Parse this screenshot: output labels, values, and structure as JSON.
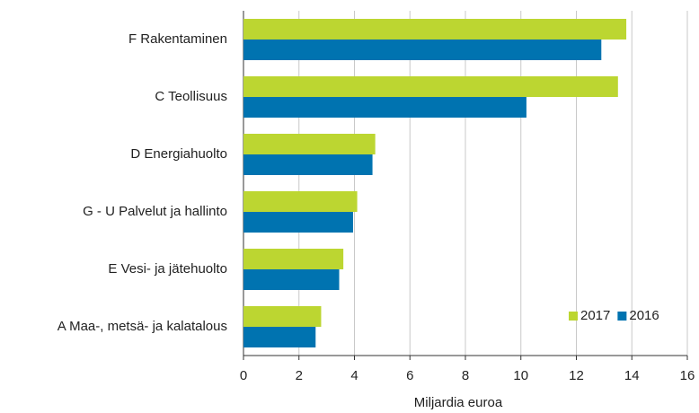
{
  "chart_data": {
    "type": "hbar",
    "xlabel": "Miljardia euroa",
    "categories": [
      "F Rakentaminen",
      "C Teollisuus",
      "D Energiahuolto",
      "G - U Palvelut ja hallinto",
      "E Vesi- ja jätehuolto",
      "A Maa-, metsä- ja kalatalous"
    ],
    "series": [
      {
        "name": "2017",
        "color": "#bcd631",
        "values": [
          13.8,
          13.5,
          4.75,
          4.1,
          3.6,
          2.8
        ]
      },
      {
        "name": "2016",
        "color": "#0073b0",
        "values": [
          12.9,
          10.2,
          4.65,
          3.95,
          3.45,
          2.6
        ]
      }
    ],
    "xlim": [
      0,
      16
    ],
    "xticks": [
      0,
      2,
      4,
      6,
      8,
      10,
      12,
      14,
      16
    ],
    "grid": true,
    "legend": "lower right"
  }
}
